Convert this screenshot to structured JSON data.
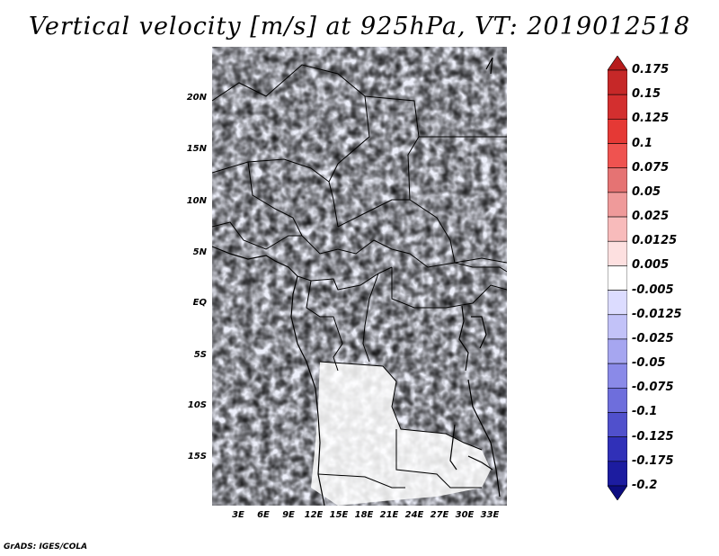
{
  "title": "Vertical velocity [m/s] at 925hPa, VT: 2019012518",
  "credit": "GrADS: IGES/COLA",
  "map": {
    "lat_ticks": [
      "20N",
      "15N",
      "10N",
      "5N",
      "EQ",
      "5S",
      "10S",
      "15S"
    ],
    "lon_ticks": [
      "3E",
      "6E",
      "9E",
      "12E",
      "15E",
      "18E",
      "21E",
      "24E",
      "27E",
      "30E",
      "33E"
    ]
  },
  "colorbar": {
    "labels": [
      "0.175",
      "0.15",
      "0.125",
      "0.1",
      "0.075",
      "0.05",
      "0.025",
      "0.0125",
      "0.005",
      "-0.005",
      "-0.0125",
      "-0.025",
      "-0.05",
      "-0.075",
      "-0.1",
      "-0.125",
      "-0.175",
      "-0.2"
    ],
    "colors": [
      "#b71c1c",
      "#c62828",
      "#d32f2f",
      "#e53935",
      "#ef5350",
      "#e57373",
      "#ef9a9a",
      "#f8bbbb",
      "#fde0e0",
      "#ffffff",
      "#dcdcff",
      "#c2c2f8",
      "#a6a6f0",
      "#8a8ae8",
      "#6e6edc",
      "#5050cc",
      "#3030b8",
      "#1c1ca0",
      "#0d0d80"
    ],
    "units": "m/s"
  }
}
